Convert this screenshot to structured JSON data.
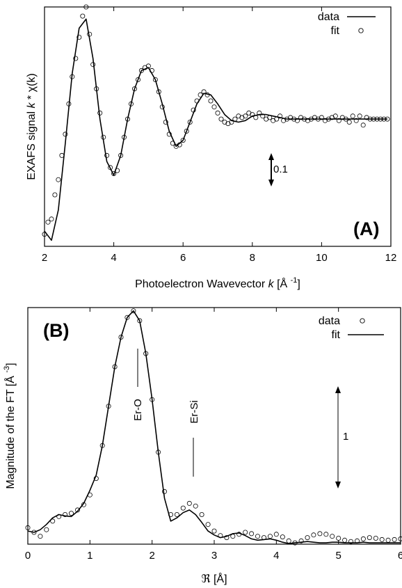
{
  "panel_a": {
    "label": "(A)",
    "legend": [
      "data",
      "fit"
    ],
    "scale_label": "0.1"
  },
  "panel_b": {
    "label": "(B)",
    "legend": [
      "data",
      "fit"
    ],
    "scale_label": "1",
    "peak_labels": [
      "Er-O",
      "Er-Si"
    ]
  },
  "chart_data": [
    {
      "type": "line",
      "title": "",
      "xlabel": "Photoelectron Wavevector k [Å⁻¹]",
      "ylabel": "EXAFS signal k * χ(k)",
      "xlim": [
        2,
        12
      ],
      "ylim": [
        -0.42,
        0.37
      ],
      "xticks": [
        2,
        4,
        6,
        8,
        10,
        12
      ],
      "legend_position": "top-right",
      "series": [
        {
          "name": "data",
          "style": "solid-line",
          "x": [
            2.0,
            2.2,
            2.4,
            2.6,
            2.8,
            3.0,
            3.2,
            3.4,
            3.6,
            3.8,
            4.0,
            4.2,
            4.4,
            4.6,
            4.8,
            5.0,
            5.2,
            5.4,
            5.6,
            5.8,
            6.0,
            6.2,
            6.4,
            6.6,
            6.8,
            7.0,
            7.2,
            7.4,
            7.6,
            7.8,
            8.0,
            8.2,
            8.4,
            8.6,
            8.8,
            9.0,
            9.5,
            10.0,
            10.5,
            11.0,
            11.5,
            11.9
          ],
          "y": [
            -0.37,
            -0.4,
            -0.3,
            -0.08,
            0.15,
            0.3,
            0.33,
            0.2,
            0.0,
            -0.14,
            -0.185,
            -0.12,
            0.0,
            0.1,
            0.16,
            0.17,
            0.13,
            0.05,
            -0.04,
            -0.09,
            -0.07,
            -0.01,
            0.05,
            0.085,
            0.08,
            0.05,
            0.015,
            -0.005,
            -0.01,
            -0.005,
            0.01,
            0.015,
            0.015,
            0.01,
            0.005,
            0.0,
            0.0,
            0.0,
            0.0,
            0.0,
            0.0,
            0.0
          ]
        },
        {
          "name": "fit",
          "style": "open-circles",
          "x": [
            2.0,
            2.1,
            2.2,
            2.3,
            2.4,
            2.5,
            2.6,
            2.7,
            2.8,
            2.9,
            3.0,
            3.1,
            3.2,
            3.3,
            3.4,
            3.5,
            3.6,
            3.7,
            3.8,
            3.9,
            4.0,
            4.1,
            4.2,
            4.3,
            4.4,
            4.5,
            4.6,
            4.7,
            4.8,
            4.9,
            5.0,
            5.1,
            5.2,
            5.3,
            5.4,
            5.5,
            5.6,
            5.7,
            5.8,
            5.9,
            6.0,
            6.1,
            6.2,
            6.3,
            6.4,
            6.5,
            6.6,
            6.7,
            6.8,
            6.9,
            7.0,
            7.1,
            7.2,
            7.3,
            7.4,
            7.5,
            7.6,
            7.7,
            7.8,
            7.9,
            8.0,
            8.1,
            8.2,
            8.3,
            8.4,
            8.5,
            8.6,
            8.7,
            8.8,
            8.9,
            9.0,
            9.1,
            9.2,
            9.3,
            9.4,
            9.5,
            9.6,
            9.7,
            9.8,
            9.9,
            10.0,
            10.1,
            10.2,
            10.3,
            10.4,
            10.5,
            10.6,
            10.7,
            10.8,
            10.9,
            11.0,
            11.1,
            11.2,
            11.3,
            11.4,
            11.5,
            11.6,
            11.7,
            11.8,
            11.9
          ],
          "y": [
            -0.38,
            -0.34,
            -0.33,
            -0.25,
            -0.2,
            -0.12,
            -0.05,
            0.05,
            0.14,
            0.2,
            0.27,
            0.34,
            0.37,
            0.28,
            0.18,
            0.1,
            0.02,
            -0.06,
            -0.12,
            -0.16,
            -0.18,
            -0.17,
            -0.12,
            -0.06,
            0.0,
            0.05,
            0.1,
            0.13,
            0.16,
            0.17,
            0.175,
            0.16,
            0.13,
            0.09,
            0.04,
            -0.01,
            -0.05,
            -0.08,
            -0.09,
            -0.085,
            -0.07,
            -0.04,
            -0.01,
            0.03,
            0.06,
            0.08,
            0.09,
            0.08,
            0.06,
            0.04,
            0.02,
            0.0,
            -0.01,
            -0.015,
            -0.01,
            0.0,
            0.01,
            0.005,
            0.01,
            0.02,
            0.015,
            0.005,
            0.02,
            0.01,
            0.0,
            0.005,
            -0.005,
            0.0,
            0.01,
            -0.005,
            0.0,
            0.005,
            0.0,
            -0.005,
            0.005,
            0.0,
            -0.005,
            0.0,
            0.005,
            0.0,
            0.005,
            -0.005,
            0.0,
            0.005,
            0.01,
            -0.005,
            0.005,
            0.0,
            -0.01,
            0.01,
            -0.005,
            0.01,
            -0.02,
            0.005,
            0.0,
            0.0,
            0.0,
            0.0,
            0.0,
            0.0
          ]
        }
      ]
    },
    {
      "type": "line",
      "title": "",
      "xlabel": "ℜ [Å]",
      "ylabel": "Magnitude of the FT [Å⁻³]",
      "xlim": [
        0,
        6
      ],
      "ylim": [
        0,
        3.6
      ],
      "xticks": [
        0,
        1,
        2,
        3,
        4,
        5,
        6
      ],
      "legend_position": "top-right",
      "series": [
        {
          "name": "data",
          "style": "open-circles",
          "x": [
            0.0,
            0.1,
            0.2,
            0.3,
            0.4,
            0.5,
            0.6,
            0.7,
            0.8,
            0.9,
            1.0,
            1.1,
            1.2,
            1.3,
            1.4,
            1.5,
            1.6,
            1.7,
            1.8,
            1.9,
            2.0,
            2.1,
            2.2,
            2.3,
            2.4,
            2.5,
            2.6,
            2.7,
            2.8,
            2.9,
            3.0,
            3.1,
            3.2,
            3.3,
            3.4,
            3.5,
            3.6,
            3.7,
            3.8,
            3.9,
            4.0,
            4.1,
            4.2,
            4.3,
            4.4,
            4.5,
            4.6,
            4.7,
            4.8,
            4.9,
            5.0,
            5.1,
            5.2,
            5.3,
            5.4,
            5.5,
            5.6,
            5.7,
            5.8,
            5.9,
            6.0
          ],
          "y": [
            0.25,
            0.18,
            0.12,
            0.22,
            0.35,
            0.42,
            0.45,
            0.47,
            0.52,
            0.6,
            0.75,
            1.0,
            1.5,
            2.1,
            2.7,
            3.15,
            3.45,
            3.55,
            3.4,
            2.9,
            2.2,
            1.4,
            0.8,
            0.45,
            0.45,
            0.55,
            0.62,
            0.58,
            0.45,
            0.3,
            0.2,
            0.13,
            0.1,
            0.12,
            0.15,
            0.18,
            0.16,
            0.12,
            0.1,
            0.12,
            0.15,
            0.11,
            0.05,
            0.02,
            0.05,
            0.1,
            0.14,
            0.16,
            0.15,
            0.12,
            0.09,
            0.06,
            0.04,
            0.05,
            0.08,
            0.1,
            0.09,
            0.07,
            0.06,
            0.07,
            0.08
          ]
        },
        {
          "name": "fit",
          "style": "solid-line",
          "x": [
            0.0,
            0.1,
            0.2,
            0.3,
            0.4,
            0.5,
            0.6,
            0.7,
            0.8,
            0.9,
            1.0,
            1.1,
            1.2,
            1.3,
            1.4,
            1.5,
            1.6,
            1.7,
            1.8,
            1.9,
            2.0,
            2.1,
            2.2,
            2.3,
            2.4,
            2.5,
            2.6,
            2.7,
            2.8,
            2.9,
            3.0,
            3.1,
            3.2,
            3.3,
            3.4,
            3.5,
            3.6,
            3.7,
            3.8,
            3.9,
            4.0,
            4.1,
            4.2,
            4.3,
            4.4,
            4.5,
            4.6,
            4.7,
            4.8,
            4.9,
            5.0,
            5.1,
            5.2,
            5.3,
            5.4,
            5.5,
            5.6,
            5.7,
            5.8,
            5.9,
            6.0
          ],
          "y": [
            0.2,
            0.18,
            0.22,
            0.3,
            0.4,
            0.45,
            0.43,
            0.42,
            0.5,
            0.62,
            0.82,
            1.05,
            1.5,
            2.1,
            2.7,
            3.15,
            3.45,
            3.55,
            3.4,
            2.9,
            2.2,
            1.4,
            0.7,
            0.35,
            0.4,
            0.48,
            0.52,
            0.45,
            0.33,
            0.2,
            0.14,
            0.1,
            0.12,
            0.16,
            0.17,
            0.13,
            0.08,
            0.06,
            0.07,
            0.08,
            0.06,
            0.03,
            0.01,
            0.02,
            0.03,
            0.04,
            0.03,
            0.02,
            0.02,
            0.03,
            0.03,
            0.02,
            0.02,
            0.02,
            0.03,
            0.02,
            0.02,
            0.02,
            0.02,
            0.02,
            0.02
          ]
        }
      ]
    }
  ]
}
